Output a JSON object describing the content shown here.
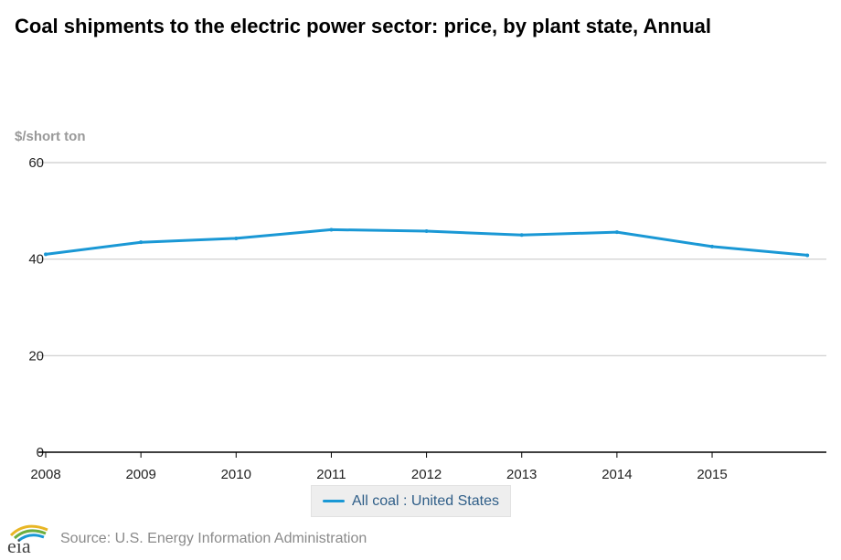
{
  "header": {
    "title": "Coal shipments to the electric power sector: price, by plant state, Annual"
  },
  "colors": {
    "series": "#1a98d5",
    "grid": "#cccccc",
    "axis": "#000000",
    "logo_gold": "#e8b625",
    "logo_green": "#6cae3f",
    "logo_blue": "#1a98d5"
  },
  "chart_data": {
    "type": "line",
    "title": "Coal shipments to the electric power sector: price, by plant state, Annual",
    "xlabel": "",
    "ylabel": "$/short ton",
    "x": [
      2008,
      2009,
      2010,
      2011,
      2012,
      2013,
      2014,
      2015,
      2016
    ],
    "xticks": [
      "2008",
      "2009",
      "2010",
      "2011",
      "2012",
      "2013",
      "2014",
      "2015"
    ],
    "yticks": [
      "0",
      "20",
      "40",
      "60"
    ],
    "ylim": [
      0,
      60
    ],
    "xlim": [
      2008,
      2016.2
    ],
    "grid": "horizontal",
    "legend": "bottom-center",
    "series": [
      {
        "name": "All coal : United States",
        "values": [
          41.0,
          43.5,
          44.3,
          46.1,
          45.8,
          45.0,
          45.6,
          42.6,
          40.8
        ]
      }
    ]
  },
  "footer": {
    "logo_text": "eia",
    "source": "Source: U.S. Energy Information Administration"
  }
}
